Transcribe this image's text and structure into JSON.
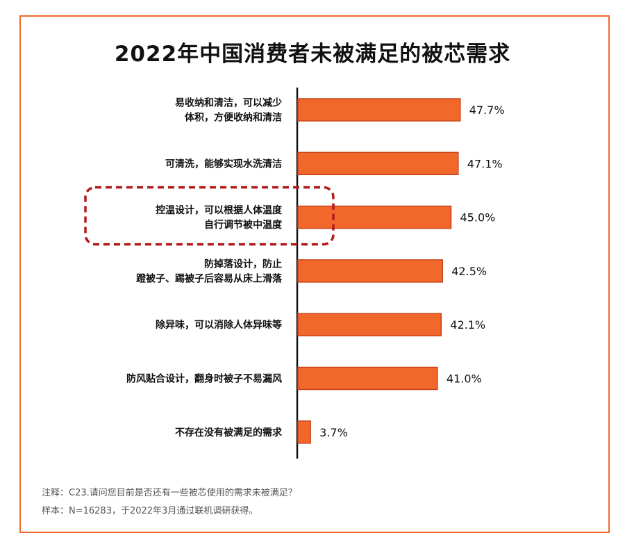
{
  "chart_data": {
    "type": "bar",
    "orientation": "horizontal",
    "title": "2022年中国消费者未被满足的被芯需求",
    "categories": [
      [
        "易收纳和清洁，可以减少",
        "体积，方便收纳和清洁"
      ],
      [
        "可清洗，能够实现水洗清洁"
      ],
      [
        "控温设计，可以根据人体温度",
        "自行调节被中温度"
      ],
      [
        "防掉落设计，防止",
        "蹬被子、踢被子后容易从床上滑落"
      ],
      [
        "除异味，可以消除人体异味等"
      ],
      [
        "防风贴合设计，翻身时被子不易漏风"
      ],
      [
        "不存在没有被满足的需求"
      ]
    ],
    "values": [
      47.7,
      47.1,
      45.0,
      42.5,
      42.1,
      41.0,
      3.7
    ],
    "value_labels": [
      "47.7%",
      "47.1%",
      "45.0%",
      "42.5%",
      "42.1%",
      "41.0%",
      "3.7%"
    ],
    "xlim": [
      0,
      100
    ],
    "highlight_index": 2,
    "grid": false,
    "xlabel": "",
    "ylabel": ""
  },
  "colors": {
    "bar_fill": "#f2672a",
    "bar_stroke": "#c8441a",
    "highlight_box": "#b31b1b",
    "frame": "#ef6a2c",
    "axis": "#111111"
  },
  "footnotes": {
    "note": "注释：C23.请问您目前是否还有一些被芯使用的需求未被满足？",
    "sample": "样本：N=16283，于2022年3月通过联机调研获得。"
  }
}
